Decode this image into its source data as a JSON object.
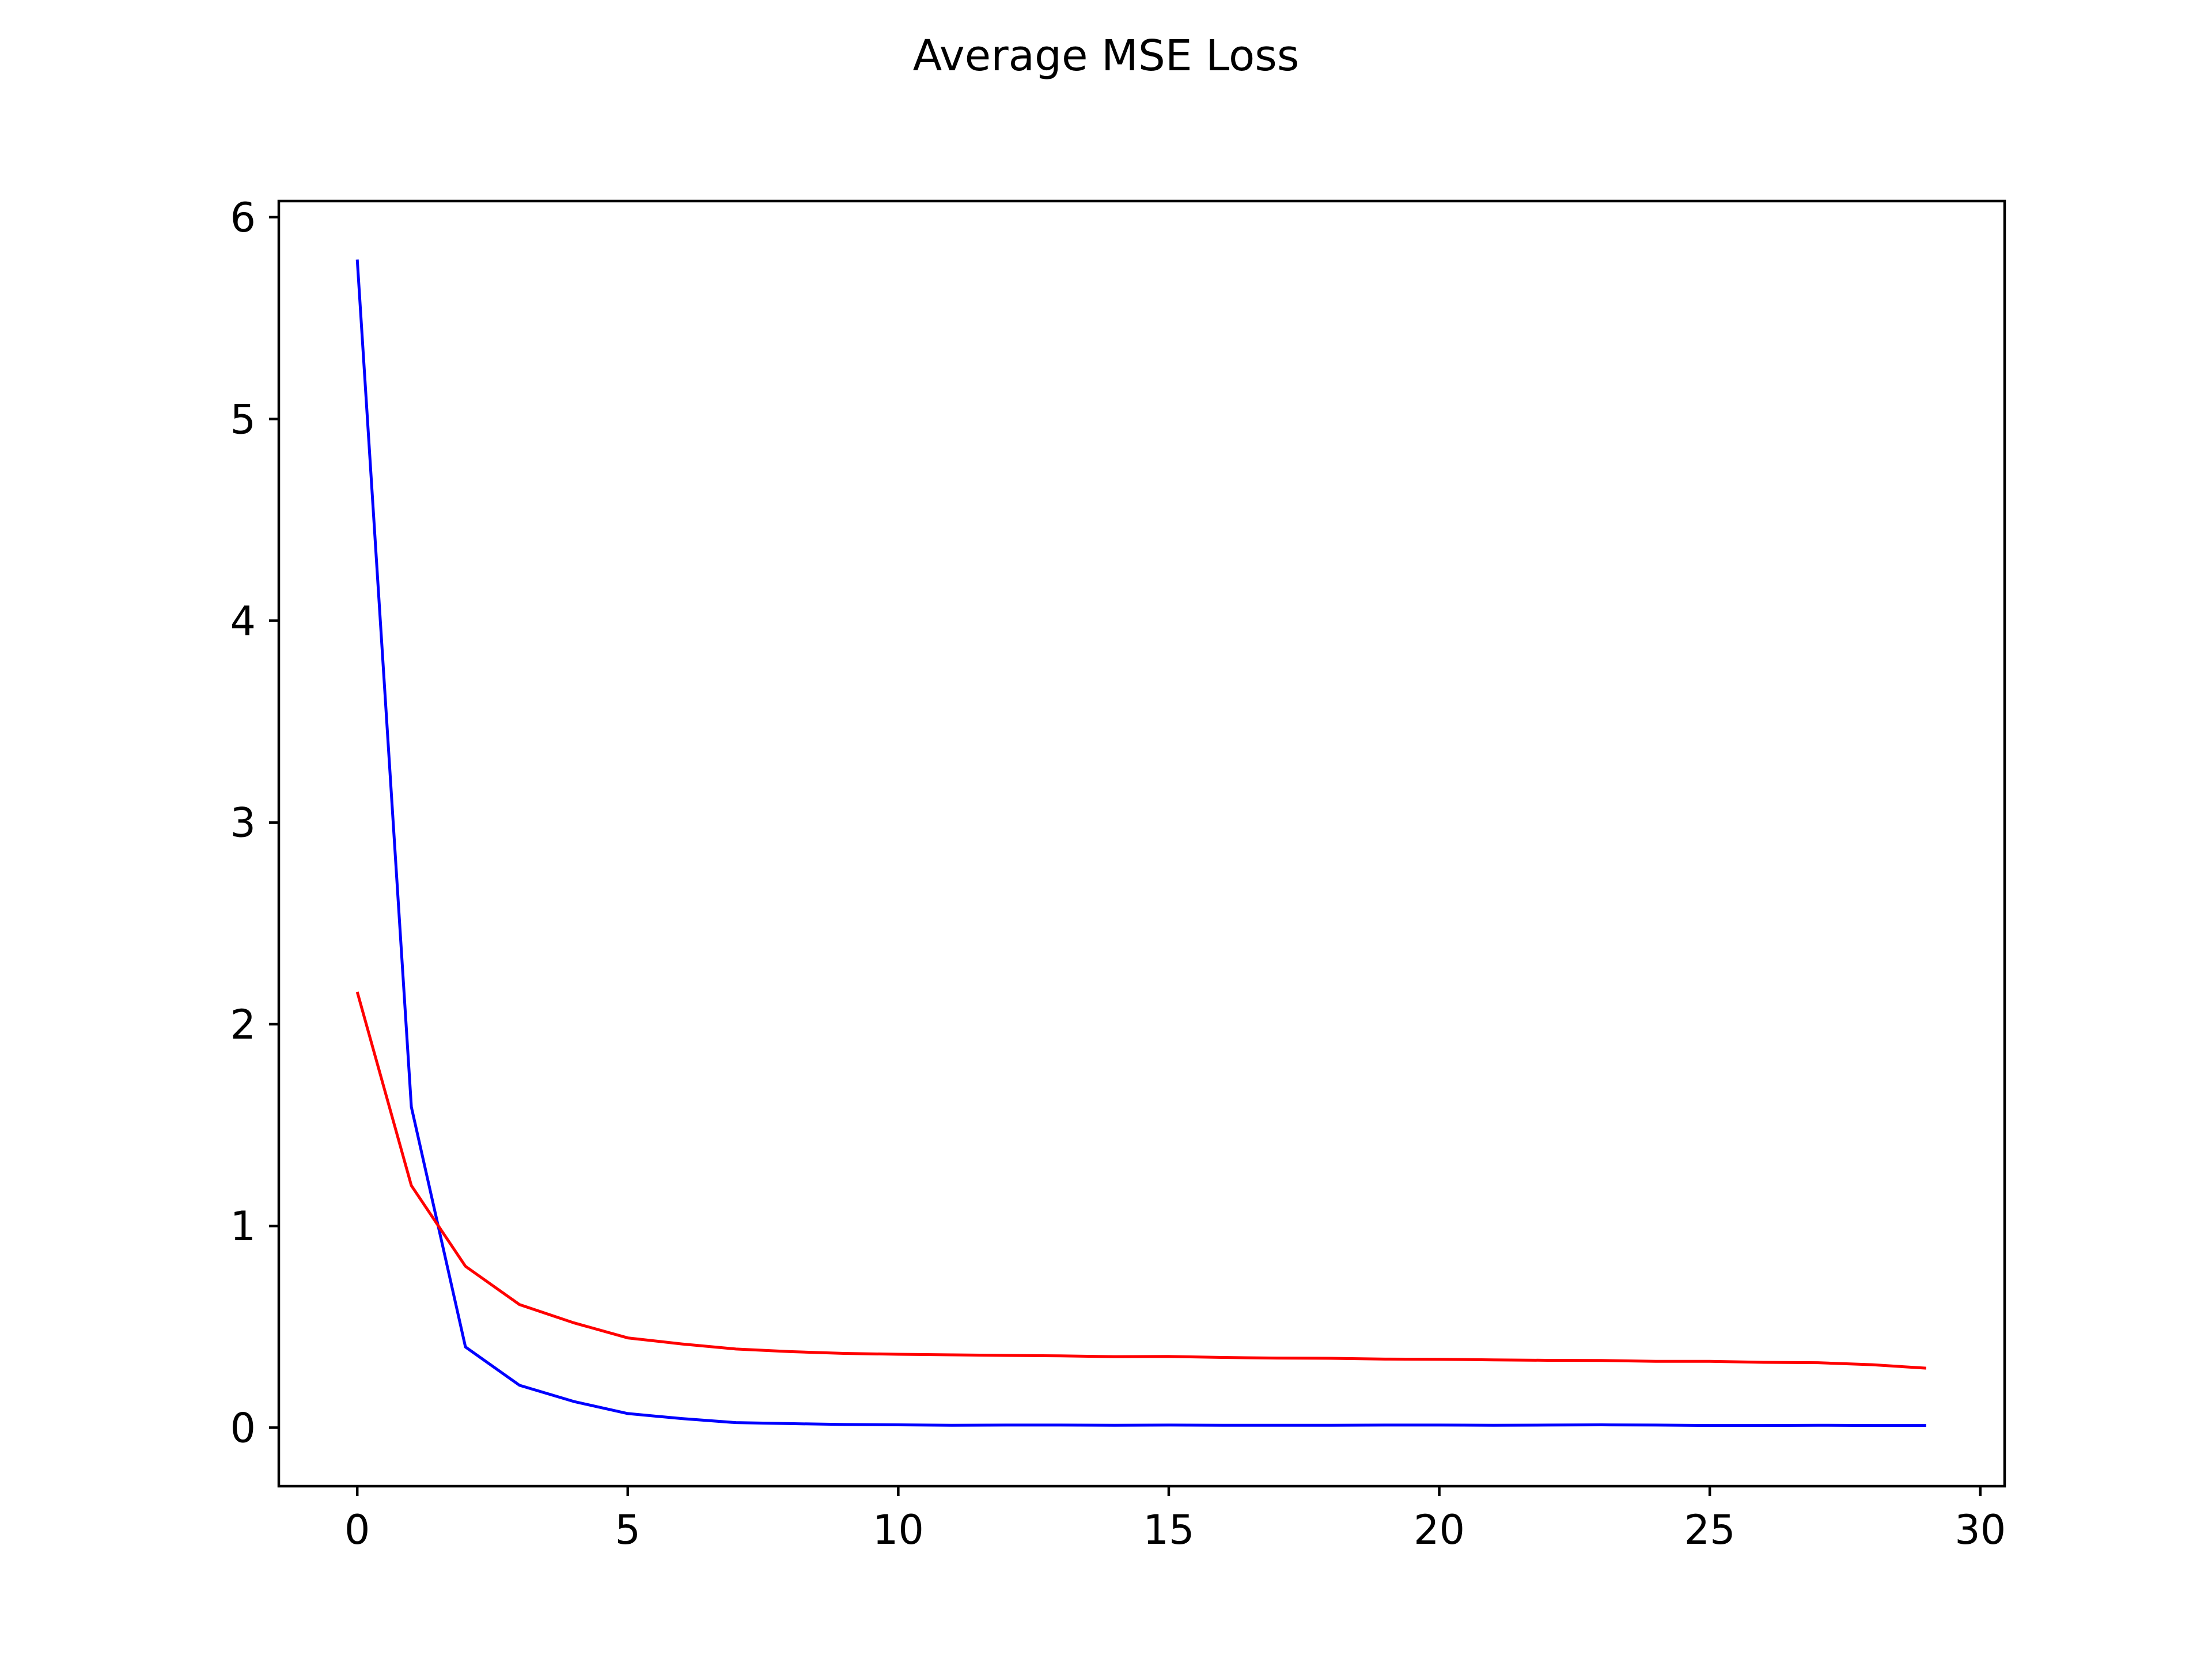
{
  "chart_data": {
    "type": "line",
    "title": "Average MSE Loss",
    "xlabel": "",
    "ylabel": "",
    "x_ticks": [
      0,
      5,
      10,
      15,
      20,
      25,
      30
    ],
    "y_ticks": [
      0,
      1,
      2,
      3,
      4,
      5,
      6
    ],
    "xlim": [
      -1.45,
      30.45
    ],
    "ylim": [
      -0.29,
      6.08
    ],
    "grid": false,
    "legend": "none",
    "x": [
      0,
      1,
      2,
      3,
      4,
      5,
      6,
      7,
      8,
      9,
      10,
      11,
      12,
      13,
      14,
      15,
      16,
      17,
      18,
      19,
      20,
      21,
      22,
      23,
      24,
      25,
      26,
      27,
      28,
      29
    ],
    "series": [
      {
        "color": "#0000ff",
        "values": [
          5.79,
          1.59,
          0.4,
          0.21,
          0.13,
          0.07,
          0.045,
          0.025,
          0.02,
          0.016,
          0.014,
          0.012,
          0.013,
          0.013,
          0.012,
          0.013,
          0.012,
          0.012,
          0.012,
          0.013,
          0.013,
          0.012,
          0.013,
          0.014,
          0.013,
          0.011,
          0.011,
          0.012,
          0.011,
          0.011
        ]
      },
      {
        "color": "#ff0000",
        "values": [
          2.16,
          1.2,
          0.8,
          0.61,
          0.52,
          0.445,
          0.415,
          0.39,
          0.377,
          0.368,
          0.364,
          0.361,
          0.358,
          0.356,
          0.352,
          0.353,
          0.348,
          0.345,
          0.344,
          0.34,
          0.339,
          0.336,
          0.334,
          0.333,
          0.329,
          0.329,
          0.324,
          0.322,
          0.312,
          0.295
        ]
      }
    ]
  }
}
